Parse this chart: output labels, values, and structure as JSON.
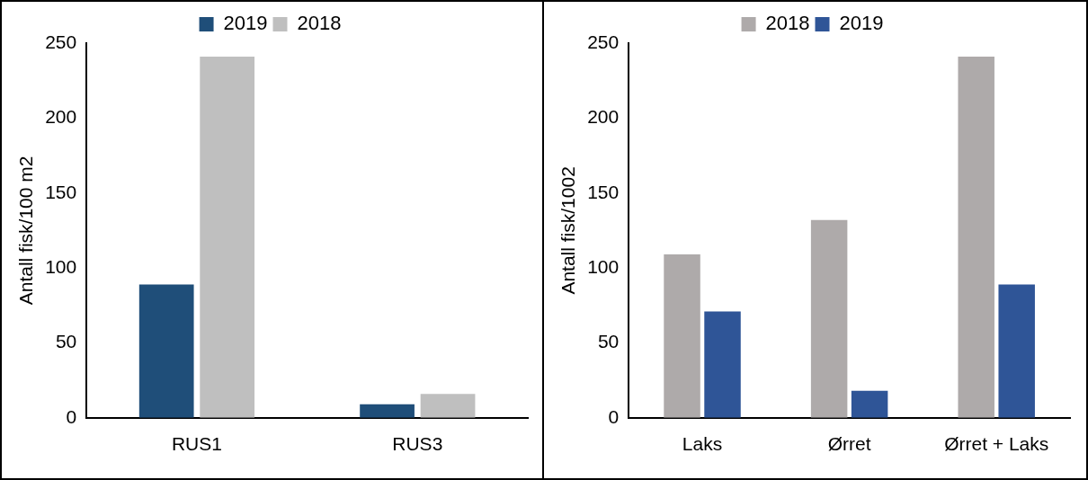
{
  "chart_data": [
    {
      "type": "bar",
      "categories": [
        "RUS1",
        "RUS3"
      ],
      "ylabel": "Antall fisk/100 m2",
      "ylim": [
        0,
        250
      ],
      "yticks": [
        0,
        50,
        100,
        150,
        200,
        250
      ],
      "grid": false,
      "legend": "top",
      "series": [
        {
          "name": "2019",
          "color": "#1f4e79",
          "values": [
            89,
            9
          ]
        },
        {
          "name": "2018",
          "color": "#bfbfbf",
          "values": [
            241,
            16
          ]
        }
      ]
    },
    {
      "type": "bar",
      "categories": [
        "Laks",
        "Ørret",
        "Ørret + Laks"
      ],
      "ylabel": "Antall fisk/1002",
      "ylim": [
        0,
        250
      ],
      "yticks": [
        0,
        50,
        100,
        150,
        200,
        250
      ],
      "grid": false,
      "legend": "top",
      "series": [
        {
          "name": "2018",
          "color": "#aeaaaa",
          "values": [
            109,
            132,
            241
          ]
        },
        {
          "name": "2019",
          "color": "#2f5597",
          "values": [
            71,
            18,
            89
          ]
        }
      ]
    }
  ]
}
